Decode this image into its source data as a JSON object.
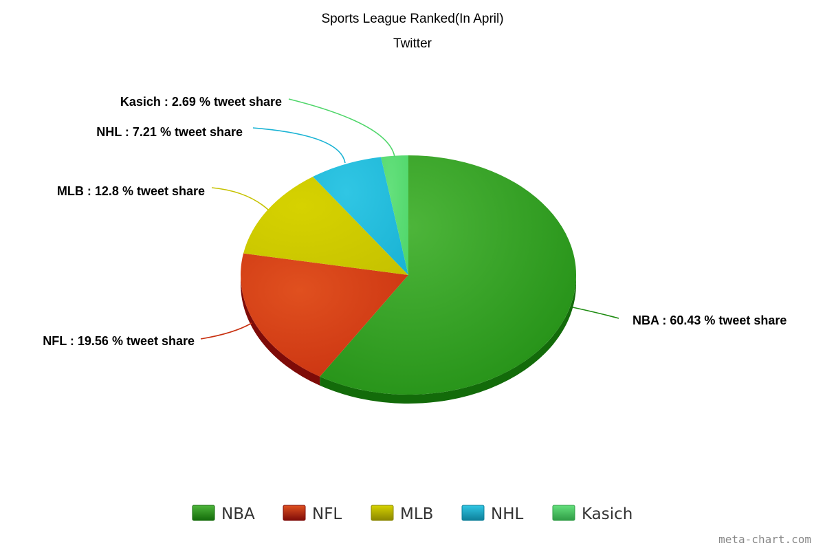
{
  "chart_data": {
    "type": "pie",
    "title": "Sports League Ranked(In April)",
    "subtitle": "Twitter",
    "label_suffix": "% tweet share",
    "slices": [
      {
        "name": "NBA",
        "value": 60.43,
        "value_label": "60.43",
        "color": "#1f8c12",
        "light": "#4db53a",
        "dark": "#136b0a"
      },
      {
        "name": "NFL",
        "value": 19.56,
        "value_label": "19.56",
        "color": "#c8300f",
        "light": "#e0501f",
        "dark": "#7e0b08"
      },
      {
        "name": "MLB",
        "value": 12.8,
        "value_label": "12.8",
        "color": "#c6c200",
        "light": "#d6d200",
        "dark": "#8a8600"
      },
      {
        "name": "NHL",
        "value": 7.21,
        "value_label": "7.21",
        "color": "#1ab3d4",
        "light": "#30c6e4",
        "dark": "#0e7f99"
      },
      {
        "name": "Kasich",
        "value": 2.69,
        "value_label": "2.69",
        "color": "#4fd66a",
        "light": "#64e07c",
        "dark": "#2f9c45"
      }
    ],
    "legend_position": "bottom",
    "credit": "meta-chart.com"
  }
}
